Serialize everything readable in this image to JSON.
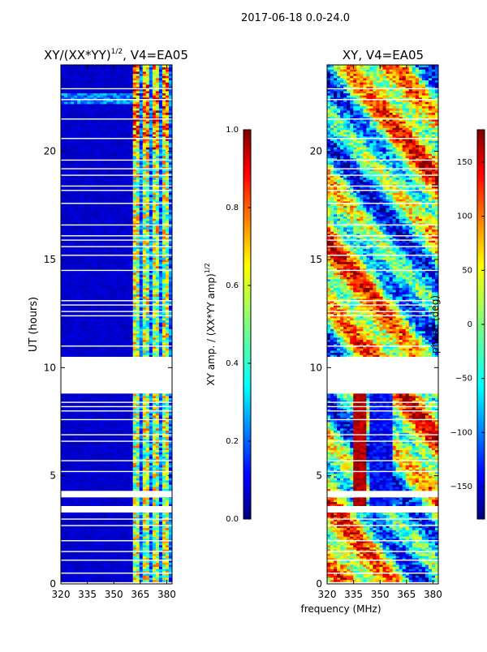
{
  "suptitle": "2017-06-18 0.0-24.0",
  "chart_data": [
    {
      "type": "heatmap",
      "title_base": "XY/(XX*YY)",
      "title_exp": "1/2",
      "title_suffix": ", V4=EA05",
      "xlabel": "",
      "ylabel": "UT (hours)",
      "xlim": [
        320,
        383
      ],
      "ylim": [
        0,
        24
      ],
      "xticks": [
        320,
        335,
        350,
        365,
        380
      ],
      "yticks": [
        0,
        5,
        10,
        15,
        20
      ],
      "colorbar": {
        "colormap": "jet",
        "range": [
          0.0,
          1.0
        ],
        "ticks": [
          "0.0",
          "0.2",
          "0.4",
          "0.6",
          "0.8",
          "1.0"
        ],
        "label_base": "XY amp. / (XX*YY amp)",
        "label_exp": "1/2"
      }
    },
    {
      "type": "heatmap",
      "title": "XY, V4=EA05",
      "xlabel": "frequency (MHz)",
      "ylabel": "",
      "xlim": [
        320,
        383
      ],
      "ylim": [
        0,
        24
      ],
      "xticks": [
        320,
        335,
        350,
        365,
        380
      ],
      "yticks": [
        0,
        5,
        10,
        15,
        20
      ],
      "colorbar": {
        "colormap": "jet",
        "range": [
          -180,
          180
        ],
        "ticks": [
          "150",
          "100",
          "50",
          "0",
          "−50",
          "−100",
          "−150"
        ],
        "label": "phase (deg)"
      }
    }
  ],
  "colors": {
    "jet": [
      "#00007f",
      "#0000ff",
      "#0080ff",
      "#00ffff",
      "#80ff80",
      "#ffff00",
      "#ff8000",
      "#ff0000",
      "#7f0000"
    ]
  }
}
